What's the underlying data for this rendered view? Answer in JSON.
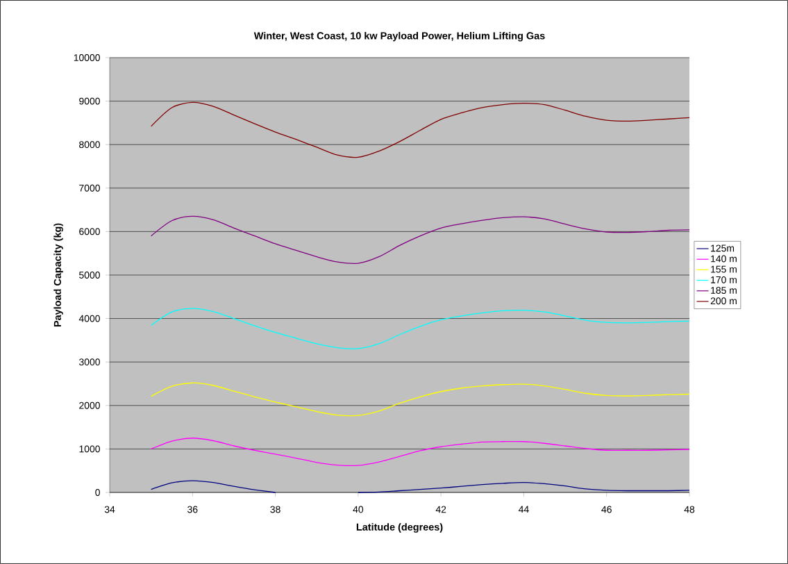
{
  "chart_data": {
    "type": "line",
    "title": "Winter, West Coast, 10 kw Payload Power,  Helium Lifting Gas",
    "xlabel": "Latitude  (degrees)",
    "ylabel": "Payload Capacity (kg)",
    "x": [
      35,
      35.5,
      36,
      36.5,
      37,
      37.5,
      38,
      38.5,
      39,
      39.5,
      40,
      40.5,
      41,
      41.5,
      42,
      42.5,
      43,
      43.5,
      44,
      44.5,
      45,
      45.5,
      46,
      46.5,
      47,
      47.5,
      48
    ],
    "xlim": [
      34,
      48
    ],
    "xticks": [
      34,
      36,
      38,
      40,
      42,
      44,
      46,
      48
    ],
    "ylim": [
      0,
      10000
    ],
    "yticks": [
      0,
      1000,
      2000,
      3000,
      4000,
      5000,
      6000,
      7000,
      8000,
      9000,
      10000
    ],
    "grid": "y",
    "legend": "right",
    "marker": "none",
    "line_style": "solid",
    "series": [
      {
        "name": "125m",
        "color": "#000080",
        "values": [
          70,
          220,
          270,
          230,
          140,
          60,
          0,
          null,
          null,
          null,
          0,
          10,
          40,
          70,
          100,
          140,
          180,
          210,
          230,
          200,
          150,
          80,
          50,
          40,
          40,
          40,
          50
        ]
      },
      {
        "name": "140  m",
        "color": "#ff00ff",
        "values": [
          1000,
          1180,
          1250,
          1190,
          1070,
          970,
          880,
          790,
          690,
          630,
          620,
          700,
          830,
          960,
          1050,
          1110,
          1160,
          1170,
          1170,
          1130,
          1070,
          1010,
          970,
          970,
          970,
          980,
          990
        ]
      },
      {
        "name": "155  m",
        "color": "#ffff00",
        "values": [
          2210,
          2440,
          2520,
          2460,
          2330,
          2200,
          2080,
          1970,
          1860,
          1780,
          1770,
          1870,
          2050,
          2200,
          2320,
          2400,
          2450,
          2480,
          2490,
          2450,
          2370,
          2280,
          2230,
          2220,
          2230,
          2250,
          2260
        ]
      },
      {
        "name": "170  m",
        "color": "#00ffff",
        "values": [
          3840,
          4150,
          4230,
          4160,
          4000,
          3830,
          3680,
          3550,
          3420,
          3330,
          3310,
          3420,
          3630,
          3820,
          3970,
          4060,
          4130,
          4180,
          4190,
          4150,
          4060,
          3960,
          3910,
          3900,
          3910,
          3930,
          3940
        ]
      },
      {
        "name": "185  m",
        "color": "#800080",
        "values": [
          5900,
          6250,
          6350,
          6270,
          6080,
          5900,
          5720,
          5570,
          5420,
          5300,
          5270,
          5420,
          5680,
          5900,
          6080,
          6180,
          6260,
          6320,
          6340,
          6290,
          6170,
          6060,
          5990,
          5980,
          6000,
          6030,
          6040
        ]
      },
      {
        "name": "200  m",
        "color": "#800000",
        "values": [
          8420,
          8850,
          8970,
          8880,
          8680,
          8480,
          8290,
          8120,
          7940,
          7760,
          7710,
          7850,
          8070,
          8330,
          8580,
          8730,
          8850,
          8920,
          8950,
          8920,
          8790,
          8650,
          8560,
          8540,
          8560,
          8590,
          8620
        ]
      }
    ]
  }
}
